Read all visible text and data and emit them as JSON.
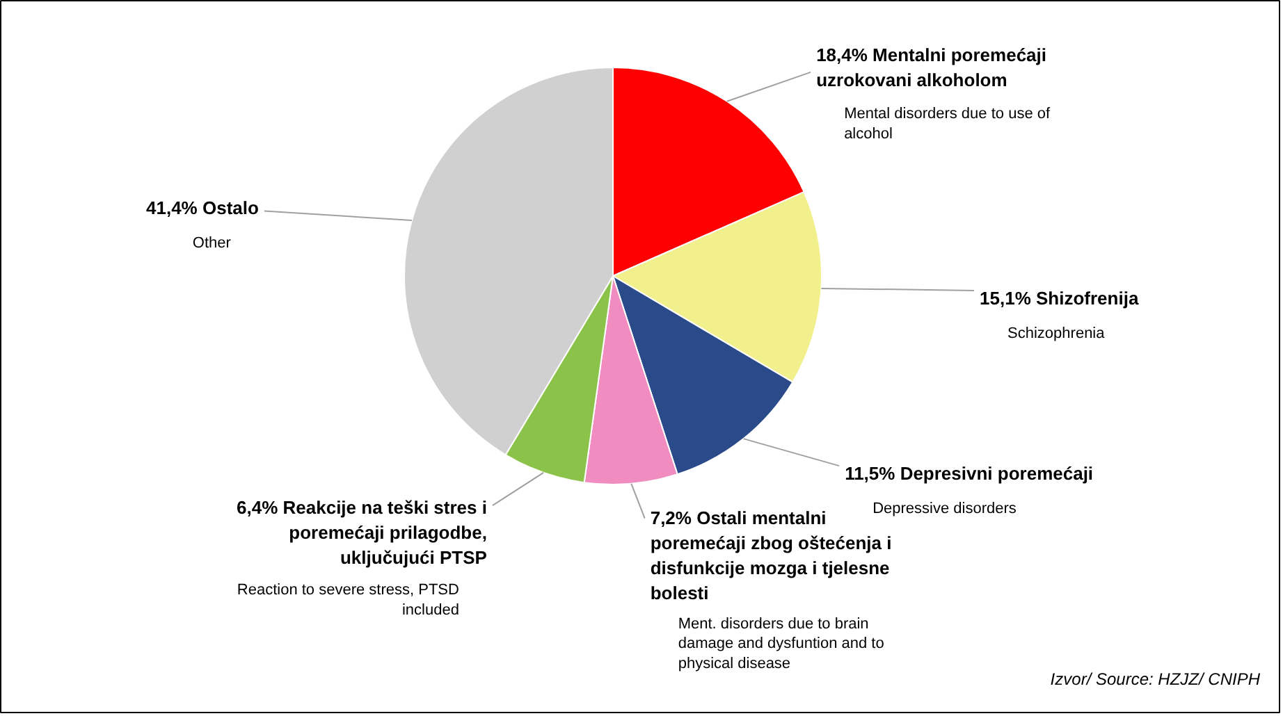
{
  "chart_data": {
    "type": "pie",
    "categories": [
      "Mentalni poremećaji uzrokovani alkoholom",
      "Shizofrenija",
      "Depresivni poremećaji",
      "Ostali mentalni poremećaji zbog oštećenja i disfunkcije mozga i tjelesne bolesti",
      "Reakcije na teški stres i poremećaji prilagodbe, uključujući PTSP",
      "Ostalo"
    ],
    "values": [
      18.4,
      15.1,
      11.5,
      7.2,
      6.4,
      41.4
    ],
    "value_labels": [
      "18,4%",
      "15,1%",
      "11,5%",
      "7,2%",
      "6,4%",
      "41,4%"
    ],
    "colors": [
      "#ff0000",
      "#f2f08c",
      "#2a4a8a",
      "#f08cc0",
      "#8bc34a",
      "#d0d0d0"
    ],
    "annotations": [
      "Mental disorders due to use of alcohol",
      "Schizophrenia",
      "Depressive disorders",
      "Ment. disorders due to brain damage and dysfuntion and to physical disease",
      "Reaction to severe stress, PTSD included",
      "Other",
      "Izvor/ Source: HZJZ/ CNIPH"
    ]
  }
}
